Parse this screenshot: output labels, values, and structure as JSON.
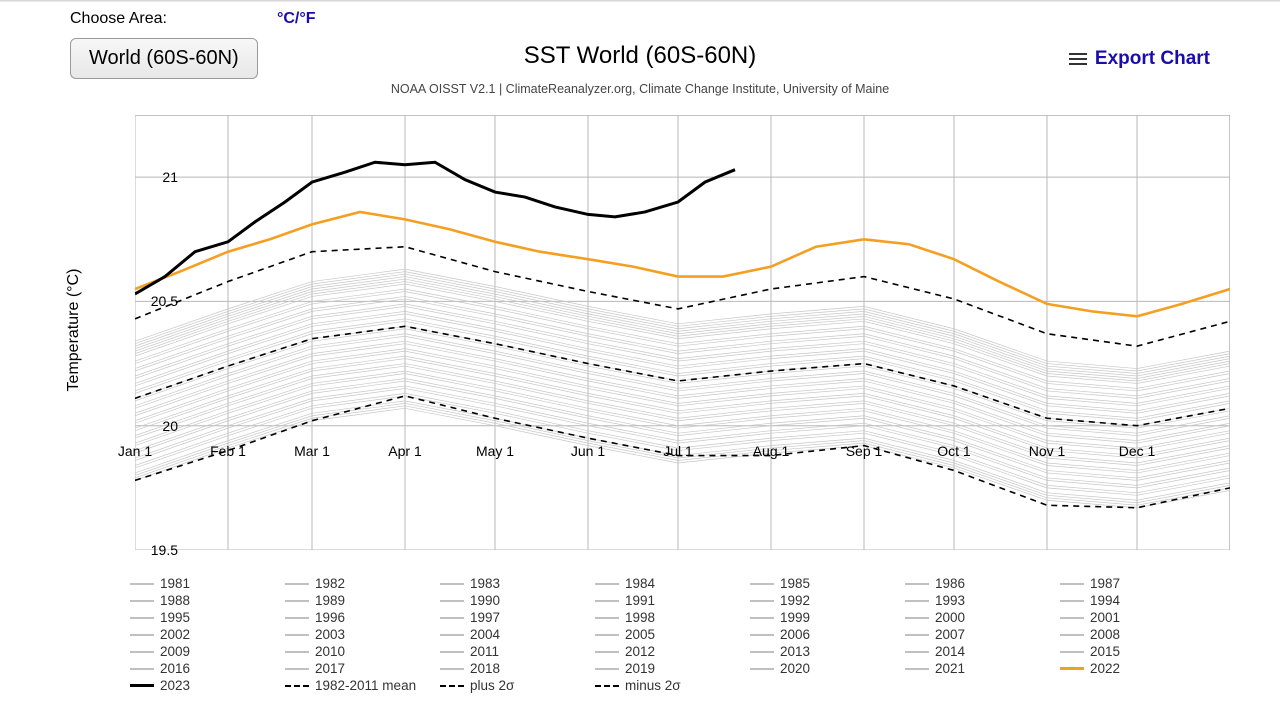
{
  "header": {
    "choose_label": "Choose Area:",
    "unit_toggle": "°C/°F",
    "area_selected": "World (60S-60N)",
    "export_label": "Export Chart"
  },
  "chart": {
    "type": "line",
    "title": "SST World (60S-60N)",
    "title_fontsize": 24,
    "subtitle": "NOAA OISST V2.1 | ClimateReanalyzer.org, Climate Change Institute, University of Maine",
    "ylabel": "Temperature (°C)",
    "label_fontsize": 16,
    "ylim": [
      19.5,
      21.25
    ],
    "yticks": [
      19.5,
      20,
      20.5,
      21
    ],
    "xlim": [
      0,
      365
    ],
    "xticks": [
      0,
      31,
      59,
      90,
      120,
      151,
      181,
      212,
      243,
      273,
      304,
      334
    ],
    "xtick_labels": [
      "Jan 1",
      "Feb 1",
      "Mar 1",
      "Apr 1",
      "May 1",
      "Jun 1",
      "Jul 1",
      "Aug 1",
      "Sep 1",
      "Oct 1",
      "Nov 1",
      "Dec 1"
    ],
    "background_color": "#ffffff",
    "grid_color": "#b8b8b8",
    "faint_line_color": "#c7c7c7",
    "faint_line_width": 0.7,
    "series_2022": {
      "color": "#f59f22",
      "width": 2.6,
      "x": [
        0,
        15,
        31,
        45,
        59,
        75,
        90,
        105,
        120,
        135,
        151,
        166,
        181,
        196,
        212,
        227,
        243,
        258,
        273,
        288,
        304,
        319,
        334,
        349,
        365
      ],
      "y": [
        20.55,
        20.62,
        20.7,
        20.75,
        20.81,
        20.86,
        20.83,
        20.79,
        20.74,
        20.7,
        20.67,
        20.64,
        20.6,
        20.6,
        20.64,
        20.72,
        20.75,
        20.73,
        20.67,
        20.58,
        20.49,
        20.46,
        20.44,
        20.49,
        20.55
      ]
    },
    "series_2023": {
      "color": "#000000",
      "width": 3.0,
      "end_day": 200,
      "x": [
        0,
        10,
        20,
        31,
        40,
        50,
        59,
        70,
        80,
        90,
        100,
        110,
        120,
        130,
        140,
        151,
        160,
        170,
        181,
        190,
        200
      ],
      "y": [
        20.53,
        20.6,
        20.7,
        20.74,
        20.82,
        20.9,
        20.98,
        21.02,
        21.06,
        21.05,
        21.06,
        20.99,
        20.94,
        20.92,
        20.88,
        20.85,
        20.84,
        20.86,
        20.9,
        20.98,
        21.03
      ]
    },
    "series_mean": {
      "color": "#000000",
      "width": 1.6,
      "dash": "6,5",
      "x": [
        0,
        31,
        59,
        90,
        120,
        151,
        181,
        212,
        243,
        273,
        304,
        334,
        365
      ],
      "y": [
        20.11,
        20.24,
        20.35,
        20.4,
        20.33,
        20.25,
        20.18,
        20.22,
        20.25,
        20.16,
        20.03,
        20.0,
        20.07
      ]
    },
    "series_plus2": {
      "color": "#000000",
      "width": 1.6,
      "dash": "6,5",
      "x": [
        0,
        31,
        59,
        90,
        120,
        151,
        181,
        212,
        243,
        273,
        304,
        334,
        365
      ],
      "y": [
        20.43,
        20.58,
        20.7,
        20.72,
        20.62,
        20.54,
        20.47,
        20.55,
        20.6,
        20.51,
        20.37,
        20.32,
        20.42
      ]
    },
    "series_minus2": {
      "color": "#000000",
      "width": 1.6,
      "dash": "6,5",
      "x": [
        0,
        31,
        59,
        90,
        120,
        151,
        181,
        212,
        243,
        273,
        304,
        334,
        365
      ],
      "y": [
        19.78,
        19.9,
        20.02,
        20.12,
        20.03,
        19.95,
        19.88,
        19.88,
        19.92,
        19.82,
        19.68,
        19.67,
        19.75
      ]
    },
    "grey_series_offsets": [
      -0.33,
      -0.3,
      -0.27,
      -0.24,
      -0.21,
      -0.18,
      -0.15,
      -0.12,
      -0.09,
      -0.06,
      -0.03,
      0.0,
      0.03,
      0.06,
      0.09,
      0.12,
      0.15,
      0.18,
      0.21,
      0.22,
      0.23,
      -0.32,
      -0.28,
      -0.22,
      -0.16,
      -0.1,
      -0.04,
      0.02,
      0.08,
      0.14,
      0.2,
      -0.31,
      -0.25,
      -0.19,
      -0.13,
      -0.07,
      -0.01,
      0.05,
      0.11,
      0.17,
      0.19
    ],
    "grey_series_base": {
      "x": [
        0,
        31,
        59,
        90,
        120,
        151,
        181,
        212,
        243,
        273,
        304,
        334,
        365
      ],
      "y": [
        20.11,
        20.24,
        20.35,
        20.4,
        20.33,
        20.25,
        20.18,
        20.22,
        20.25,
        20.16,
        20.03,
        20.0,
        20.07
      ]
    }
  },
  "legend": {
    "years": [
      "1981",
      "1982",
      "1983",
      "1984",
      "1985",
      "1986",
      "1987",
      "1988",
      "1989",
      "1990",
      "1991",
      "1992",
      "1993",
      "1994",
      "1995",
      "1996",
      "1997",
      "1998",
      "1999",
      "2000",
      "2001",
      "2002",
      "2003",
      "2004",
      "2005",
      "2006",
      "2007",
      "2008",
      "2009",
      "2010",
      "2011",
      "2012",
      "2013",
      "2014",
      "2015",
      "2016",
      "2017",
      "2018",
      "2019",
      "2020",
      "2021",
      "2022",
      "2023"
    ],
    "special": {
      "mean": "1982-2011 mean",
      "plus": "plus 2σ",
      "minus": "minus 2σ"
    }
  }
}
